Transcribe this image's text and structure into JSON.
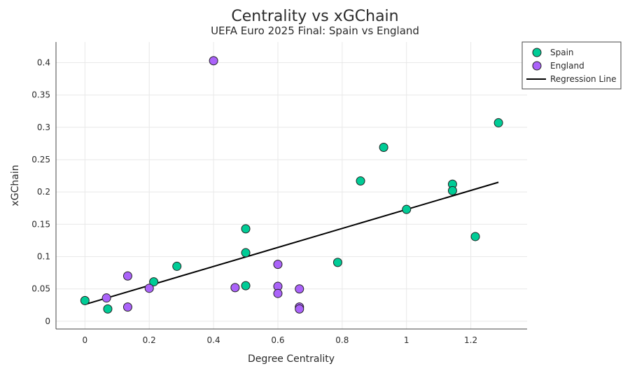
{
  "chart_data": {
    "type": "scatter",
    "title": "Centrality vs xGChain",
    "subtitle": "UEFA Euro 2025 Final: Spain vs England",
    "xlabel": "Degree Centrality",
    "ylabel": "xGChain",
    "xlim": [
      -0.09,
      1.375
    ],
    "ylim": [
      -0.012,
      0.432
    ],
    "xticks": [
      0,
      0.2,
      0.4,
      0.6,
      0.8,
      1,
      1.2
    ],
    "xtick_labels": [
      "0",
      "0.2",
      "0.4",
      "0.6",
      "0.8",
      "1",
      "1.2"
    ],
    "yticks": [
      0,
      0.05,
      0.1,
      0.15,
      0.2,
      0.25,
      0.3,
      0.35,
      0.4
    ],
    "ytick_labels": [
      "0",
      "0.05",
      "0.1",
      "0.15",
      "0.2",
      "0.25",
      "0.3",
      "0.35",
      "0.4"
    ],
    "grid": true,
    "legend_position": "top-right",
    "series": [
      {
        "name": "Spain",
        "color": "#00cc96",
        "points": [
          {
            "x": 0.0,
            "y": 0.032
          },
          {
            "x": 0.071,
            "y": 0.019
          },
          {
            "x": 0.214,
            "y": 0.061
          },
          {
            "x": 0.286,
            "y": 0.085
          },
          {
            "x": 0.5,
            "y": 0.143
          },
          {
            "x": 0.5,
            "y": 0.106
          },
          {
            "x": 0.5,
            "y": 0.055
          },
          {
            "x": 0.786,
            "y": 0.091
          },
          {
            "x": 0.857,
            "y": 0.217
          },
          {
            "x": 0.929,
            "y": 0.269
          },
          {
            "x": 1.0,
            "y": 0.173
          },
          {
            "x": 1.143,
            "y": 0.212
          },
          {
            "x": 1.143,
            "y": 0.202
          },
          {
            "x": 1.214,
            "y": 0.131
          },
          {
            "x": 1.286,
            "y": 0.307
          }
        ]
      },
      {
        "name": "England",
        "color": "#ab63fa",
        "points": [
          {
            "x": 0.067,
            "y": 0.036
          },
          {
            "x": 0.133,
            "y": 0.07
          },
          {
            "x": 0.133,
            "y": 0.022
          },
          {
            "x": 0.2,
            "y": 0.051
          },
          {
            "x": 0.4,
            "y": 0.403
          },
          {
            "x": 0.467,
            "y": 0.052
          },
          {
            "x": 0.6,
            "y": 0.088
          },
          {
            "x": 0.6,
            "y": 0.054
          },
          {
            "x": 0.6,
            "y": 0.043
          },
          {
            "x": 0.667,
            "y": 0.05
          },
          {
            "x": 0.667,
            "y": 0.022
          },
          {
            "x": 0.667,
            "y": 0.019
          }
        ]
      }
    ],
    "regression_line": {
      "name": "Regression Line",
      "color": "#000000",
      "start": {
        "x": 0.0,
        "y": 0.026
      },
      "end": {
        "x": 1.286,
        "y": 0.215
      }
    }
  }
}
